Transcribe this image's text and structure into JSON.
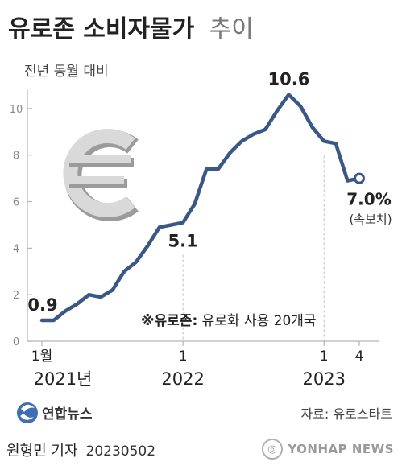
{
  "chart_data": {
    "type": "line",
    "title": "유로존 소비자물가",
    "title_suffix": "추이",
    "ylabel": "전년 동월 대비",
    "ylim": [
      0,
      11
    ],
    "yticks": [
      0,
      2,
      4,
      6,
      8,
      10
    ],
    "grid": false,
    "x": [
      "2021-01",
      "2021-02",
      "2021-03",
      "2021-04",
      "2021-05",
      "2021-06",
      "2021-07",
      "2021-08",
      "2021-09",
      "2021-10",
      "2021-11",
      "2021-12",
      "2022-01",
      "2022-02",
      "2022-03",
      "2022-04",
      "2022-05",
      "2022-06",
      "2022-07",
      "2022-08",
      "2022-09",
      "2022-10",
      "2022-11",
      "2022-12",
      "2023-01",
      "2023-02",
      "2023-03",
      "2023-04"
    ],
    "values": [
      0.9,
      0.9,
      1.3,
      1.6,
      2.0,
      1.9,
      2.2,
      3.0,
      3.4,
      4.1,
      4.9,
      5.0,
      5.1,
      5.9,
      7.4,
      7.4,
      8.1,
      8.6,
      8.9,
      9.1,
      9.9,
      10.6,
      10.1,
      9.2,
      8.6,
      8.5,
      6.9,
      7.0
    ],
    "xtick_labels": [
      {
        "month": "1월",
        "year": "2021년",
        "index": 0
      },
      {
        "month": "1",
        "year": "2022",
        "index": 12
      },
      {
        "month": "1",
        "year": "2023",
        "index": 24
      },
      {
        "month": "4",
        "year": "",
        "index": 27
      }
    ],
    "annotations": [
      {
        "text": "0.9",
        "index": 0
      },
      {
        "text": "5.1",
        "index": 12
      },
      {
        "text": "10.6",
        "index": 21
      },
      {
        "text": "7.0%",
        "sub": "(속보치)",
        "index": 27
      }
    ],
    "note": {
      "prefix": "※유로존:",
      "text": " 유로화 사용 20개국"
    },
    "colors": {
      "line": "#3a5887",
      "text": "#222222",
      "axis": "#b5b5b5",
      "title_suffix": "#777777"
    }
  },
  "logo": {
    "name": "연합뉴스",
    "icon": "yonhap-logo-icon"
  },
  "source": "자료: 유로스타트",
  "byline": {
    "author": "원형민 기자",
    "date": "20230502"
  },
  "watermark": {
    "text": "YONHAP NEWS",
    "icon": "yonhap-watermark-icon"
  },
  "decoration": {
    "icon": "euro-sign-icon"
  }
}
